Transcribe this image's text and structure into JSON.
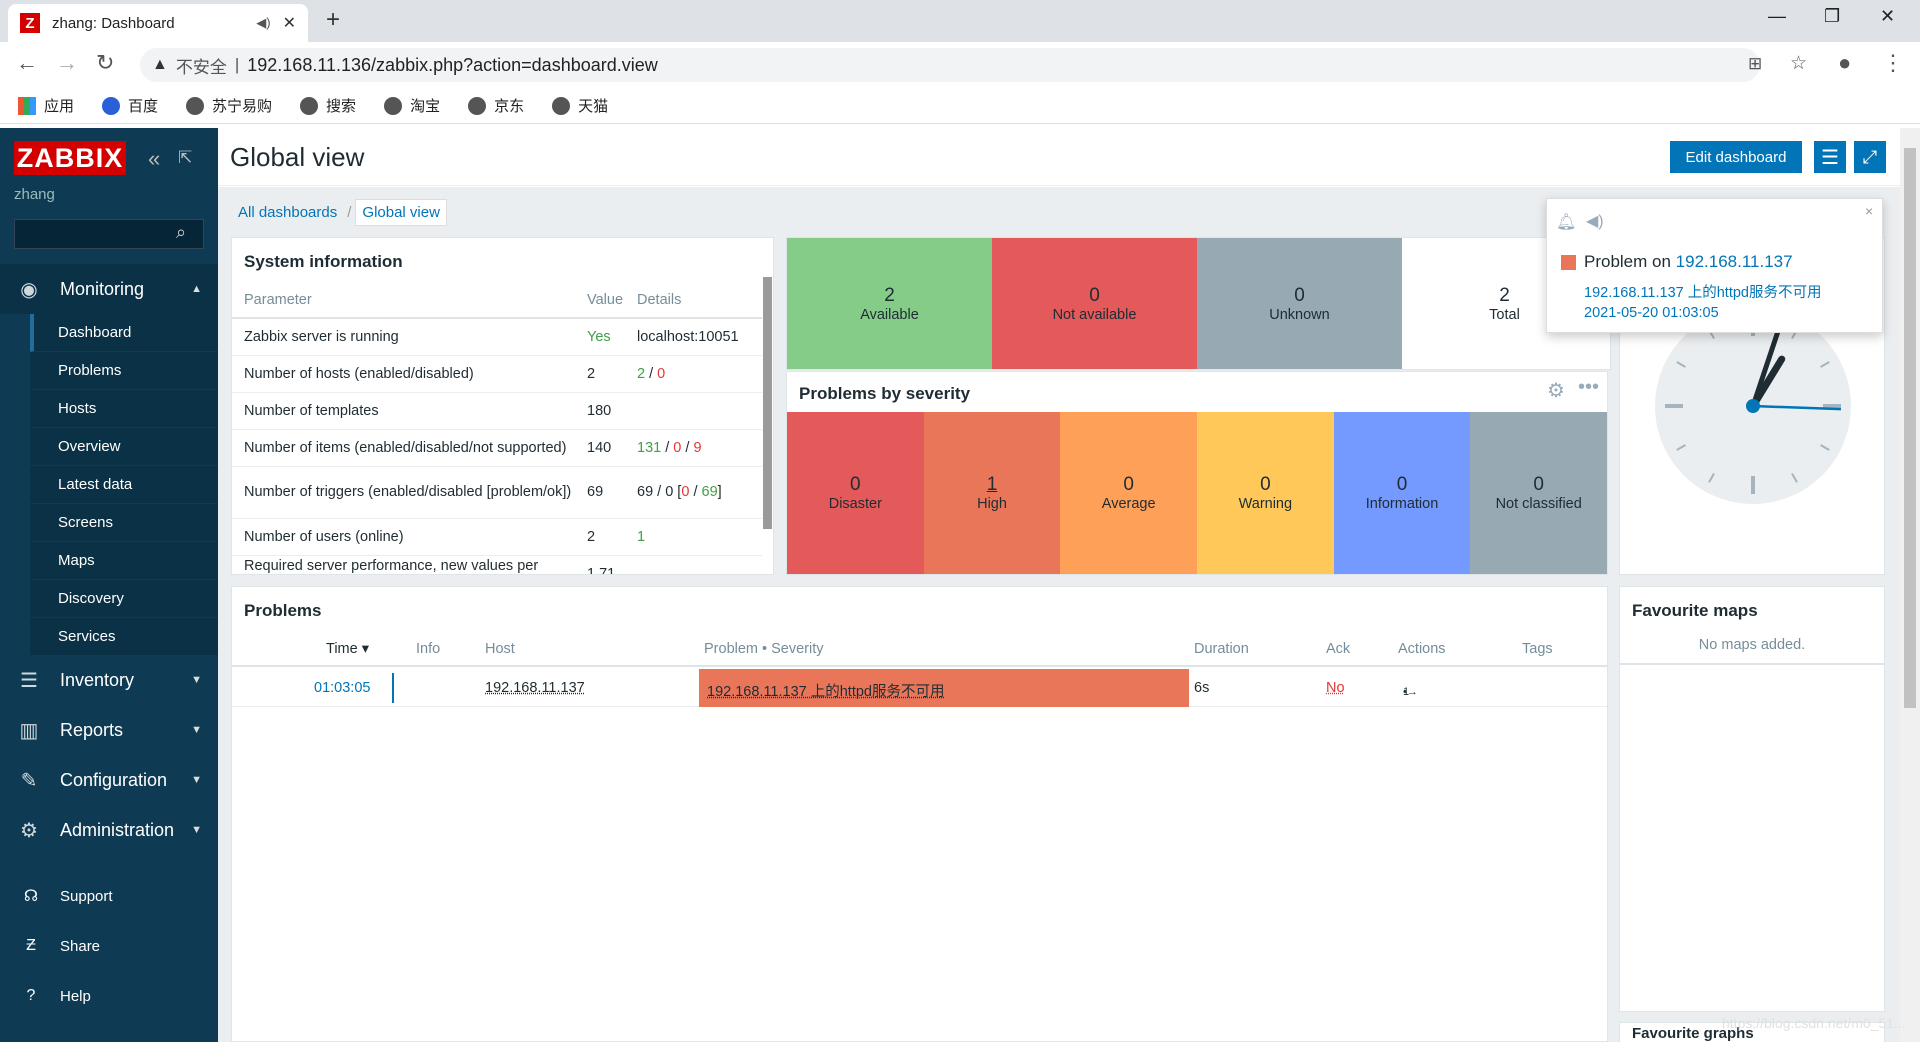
{
  "browser": {
    "tab_title": "zhang: Dashboard",
    "favicon_letter": "Z",
    "address_insecure": "不安全",
    "address_url": "192.168.11.136/zabbix.php?action=dashboard.view",
    "bookmarks": [
      "应用",
      "百度",
      "苏宁易购",
      "搜索",
      "淘宝",
      "京东",
      "天猫"
    ]
  },
  "sidebar": {
    "logo": "ZABBIX",
    "user": "zhang",
    "search_value": "",
    "monitoring_label": "Monitoring",
    "monitoring_items": [
      "Dashboard",
      "Problems",
      "Hosts",
      "Overview",
      "Latest data",
      "Screens",
      "Maps",
      "Discovery",
      "Services"
    ],
    "inventory_label": "Inventory",
    "reports_label": "Reports",
    "configuration_label": "Configuration",
    "administration_label": "Administration",
    "support_label": "Support",
    "share_label": "Share",
    "help_label": "Help"
  },
  "header": {
    "title": "Global view",
    "edit_dashboard_label": "Edit dashboard"
  },
  "breadcrumb": {
    "all": "All dashboards",
    "separator": "/",
    "current": "Global view"
  },
  "system_info": {
    "title": "System information",
    "columns": [
      "Parameter",
      "Value",
      "Details"
    ],
    "rows": [
      {
        "param": "Zabbix server is running",
        "value": "Yes",
        "details": "localhost:10051"
      },
      {
        "param": "Number of hosts (enabled/disabled)",
        "value": "2",
        "d1": "2",
        "d2": "0"
      },
      {
        "param": "Number of templates",
        "value": "180",
        "details": ""
      },
      {
        "param": "Number of items (enabled/disabled/not supported)",
        "value": "140",
        "d1": "131",
        "d2": "0",
        "d3": "9"
      },
      {
        "param": "Number of triggers (enabled/disabled [problem/ok])",
        "value": "69",
        "d1": "69 / 0 [",
        "d2": "0",
        "d3": "69",
        "d4": "]"
      },
      {
        "param": "Number of users (online)",
        "value": "2",
        "details": "1"
      },
      {
        "param": "Required server performance, new values per second",
        "value": "1.71",
        "details": ""
      }
    ]
  },
  "hosts_availability": {
    "items": [
      {
        "count": "2",
        "label": "Available",
        "color": "#86cc89"
      },
      {
        "count": "0",
        "label": "Not available",
        "color": "#e45959"
      },
      {
        "count": "0",
        "label": "Unknown",
        "color": "#97aab3"
      },
      {
        "count": "2",
        "label": "Total",
        "color": "#ffffff"
      }
    ]
  },
  "problems_by_severity": {
    "title": "Problems by severity",
    "items": [
      {
        "count": "0",
        "label": "Disaster",
        "color": "#e45959"
      },
      {
        "count": "1",
        "label": "High",
        "color": "#e97659"
      },
      {
        "count": "0",
        "label": "Average",
        "color": "#ffa059"
      },
      {
        "count": "0",
        "label": "Warning",
        "color": "#ffc859"
      },
      {
        "count": "0",
        "label": "Information",
        "color": "#7499ff"
      },
      {
        "count": "0",
        "label": "Not classified",
        "color": "#97aab3"
      }
    ]
  },
  "problems": {
    "title": "Problems",
    "columns": {
      "time": "Time ▾",
      "info": "Info",
      "host": "Host",
      "problem": "Problem • Severity",
      "duration": "Duration",
      "ack": "Ack",
      "actions": "Actions",
      "tags": "Tags"
    },
    "rows": [
      {
        "time": "01:03:05",
        "host": "192.168.11.137",
        "problem": "192.168.11.137 上的httpd服务不可用",
        "duration": "6s",
        "ack": "No",
        "actions": "1"
      }
    ]
  },
  "favourite_maps": {
    "title": "Favourite maps",
    "empty": "No maps added.",
    "next_title": "Favourite graphs"
  },
  "notification": {
    "prefix": "Problem on",
    "host": "192.168.11.137",
    "message": "192.168.11.137 上的httpd服务不可用",
    "timestamp": "2021-05-20 01:03:05",
    "close": "×"
  },
  "clock": {
    "hour": 1,
    "minute": 3,
    "second": 5
  },
  "watermark": "https://blog.csdn.net/m0_51..."
}
